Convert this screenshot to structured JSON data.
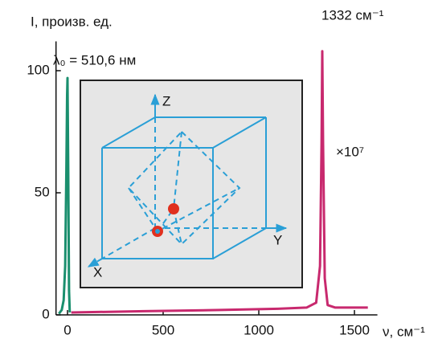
{
  "chart_data": {
    "type": "line",
    "y_label": "I, произв. ед.",
    "x_label": "ν, см⁻¹",
    "annotations": [
      "λ₀ = 510,6 нм",
      "1332 см⁻¹",
      "×10⁷"
    ],
    "series": [
      {
        "color": "#1a8f6e",
        "x": [
          -45,
          -30,
          -20,
          -12,
          -6,
          -2,
          0,
          4,
          8,
          12
        ],
        "values": [
          0.5,
          2,
          6,
          20,
          60,
          90,
          97,
          60,
          10,
          1
        ]
      },
      {
        "color": "#c8296e",
        "x": [
          20,
          400,
          800,
          1100,
          1250,
          1300,
          1320,
          1328,
          1332,
          1336,
          1345,
          1360,
          1400,
          1570
        ],
        "values": [
          1,
          1.5,
          2,
          2.5,
          3,
          5,
          20,
          70,
          108,
          70,
          15,
          4,
          3,
          3
        ]
      }
    ],
    "xlim": [
      -60,
      1620
    ],
    "ylim": [
      0,
      112
    ],
    "xticks": [
      0,
      500,
      1000,
      1500
    ],
    "yticks": [
      0,
      50,
      100
    ]
  },
  "inset": {
    "axis_labels": [
      "Z",
      "Y",
      "X"
    ]
  }
}
